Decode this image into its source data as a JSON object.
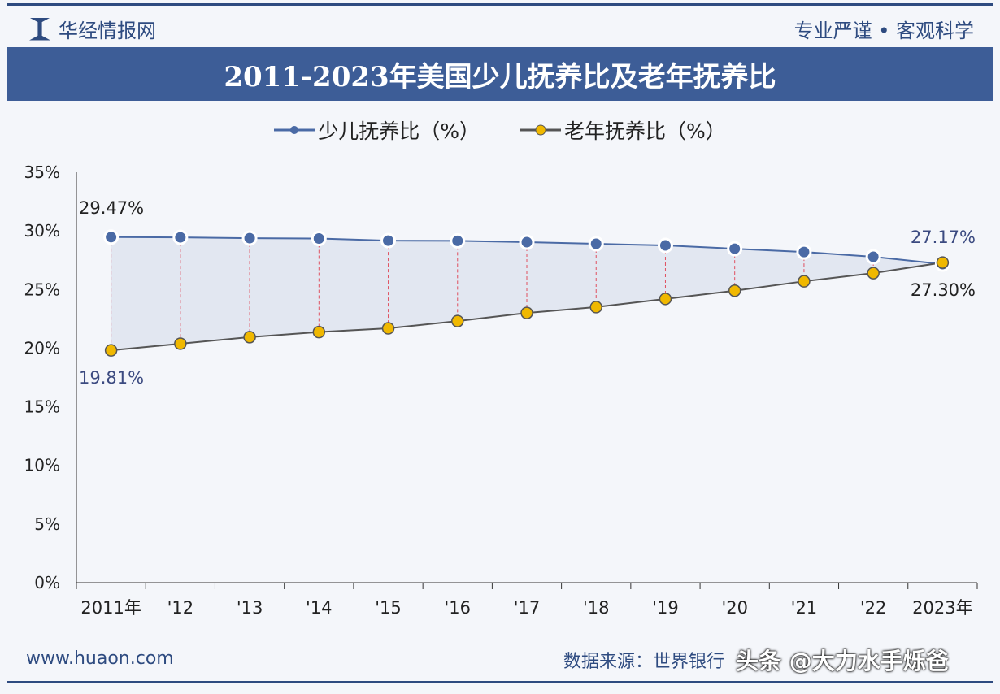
{
  "header": {
    "brand": "华经情报网",
    "slogan": "专业严谨 • 客观科学"
  },
  "title": "2011-2023年美国少儿抚养比及老年抚养比",
  "footer": {
    "website": "www.huaon.com",
    "source": "数据来源：世界银行",
    "watermark": "头条 @大力水手烁爸"
  },
  "colors": {
    "youth": "#4a6aa5",
    "elderly": "#f0b800",
    "banner": "#3d5d97"
  },
  "chart_data": {
    "type": "line",
    "title": "2011-2023年美国少儿抚养比及老年抚养比",
    "categories": [
      "2011年",
      "'12",
      "'13",
      "'14",
      "'15",
      "'16",
      "'17",
      "'18",
      "'19",
      "'20",
      "'21",
      "'22",
      "2023年"
    ],
    "series": [
      {
        "name": "少儿抚养比（%）",
        "values": [
          29.47,
          29.45,
          29.38,
          29.35,
          29.17,
          29.15,
          29.04,
          28.9,
          28.76,
          28.48,
          28.2,
          27.79,
          27.17
        ]
      },
      {
        "name": "老年抚养比（%）",
        "values": [
          19.81,
          20.38,
          20.94,
          21.37,
          21.69,
          22.31,
          23.0,
          23.5,
          24.2,
          24.9,
          25.7,
          26.4,
          27.3
        ]
      }
    ],
    "data_labels": [
      "29.47%",
      "19.81%",
      "27.17%",
      "27.30%"
    ],
    "yticks": [
      "0%",
      "5%",
      "10%",
      "15%",
      "20%",
      "25%",
      "30%",
      "35%"
    ],
    "ylim": [
      0,
      35
    ],
    "legend": "top"
  }
}
